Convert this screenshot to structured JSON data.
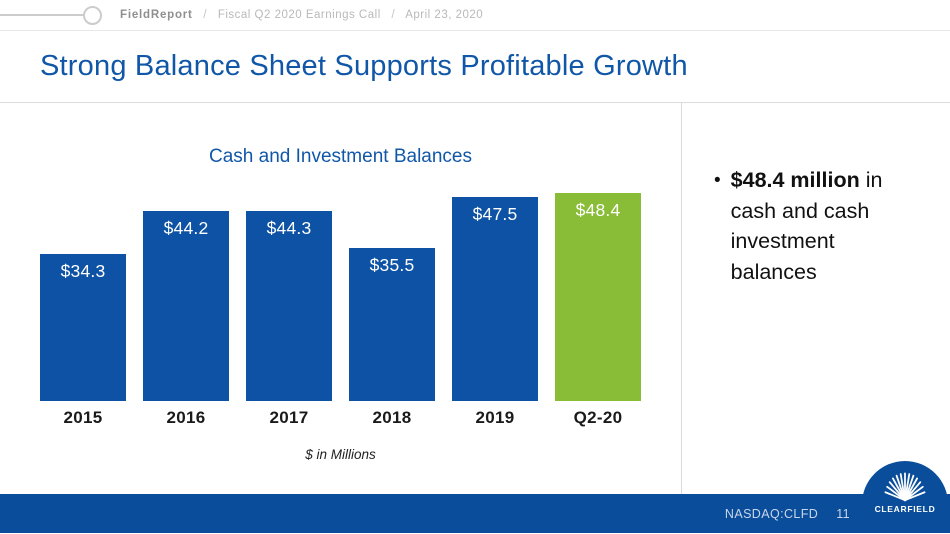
{
  "header": {
    "brand": "FieldReport",
    "sep1": "/",
    "crumb_event": "Fiscal Q2 2020 Earnings Call",
    "sep2": "/",
    "crumb_date": "April 23, 2020"
  },
  "title": "Strong Balance Sheet Supports Profitable Growth",
  "chart_data": {
    "type": "bar",
    "title": "Cash and Investment Balances",
    "categories": [
      "2015",
      "2016",
      "2017",
      "2018",
      "2019",
      "Q2-20"
    ],
    "values": [
      34.3,
      44.2,
      44.3,
      35.5,
      47.5,
      48.4
    ],
    "value_labels": [
      "$34.3",
      "$44.2",
      "$44.3",
      "$35.5",
      "$47.5",
      "$48.4"
    ],
    "xlabel": "$ in Millions",
    "ylabel": "",
    "ylim": [
      0,
      50
    ],
    "grid": false,
    "legend": "none",
    "bar_colors": [
      "#0E52A5",
      "#0E52A5",
      "#0E52A5",
      "#0E52A5",
      "#0E52A5",
      "#8ABD37"
    ],
    "value_label_color": "#FFFFFF"
  },
  "key_point": {
    "bullet_bold": "$48.4 million",
    "bullet_rest": " in cash and cash investment balances"
  },
  "footer": {
    "ticker": "NASDAQ:CLFD",
    "page_number": "11",
    "logo_text": "CLEARFIELD"
  },
  "colors": {
    "title_blue": "#1157A8",
    "bar_blue": "#0E52A5",
    "highlight_green": "#8ABD37",
    "footer_blue": "#0A4E9B"
  }
}
